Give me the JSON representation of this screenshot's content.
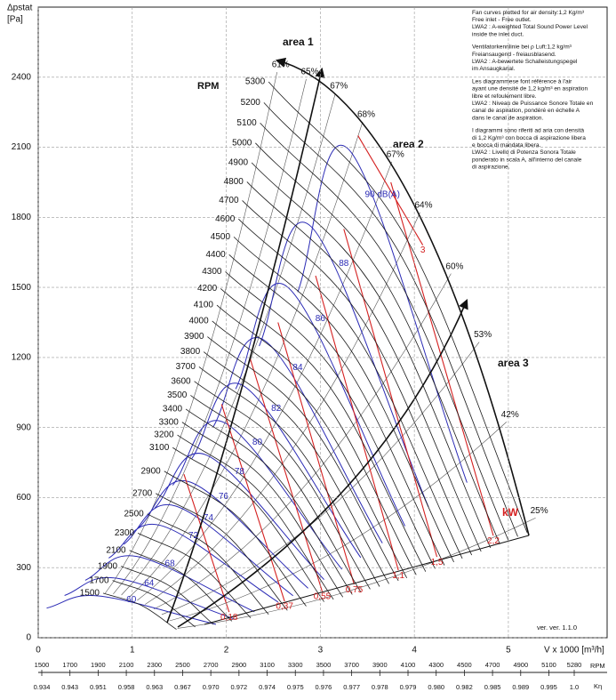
{
  "chart_data": {
    "type": "fan-curves",
    "y_label": "Δpstat",
    "y_unit": "[Pa]",
    "x_label": "V x 1000 [m³/h]",
    "version": "ver. ver. 1.1.0",
    "xlim": [
      0,
      6.05
    ],
    "ylim": [
      0,
      2700
    ],
    "xticks": [
      0,
      1,
      2,
      3,
      4,
      5
    ],
    "yticks": [
      0,
      300,
      600,
      900,
      1200,
      1500,
      1800,
      2100,
      2400
    ],
    "grid": true,
    "rpm_title": "RPM",
    "area_labels": [
      "area 1",
      "area 2",
      "area 3"
    ],
    "rpm_curves": {
      "color": "#1a1a1a",
      "labels": [
        "1500",
        "1700",
        "1900",
        "2100",
        "2300",
        "2500",
        "2700",
        "2900",
        "3100",
        "3200",
        "3300",
        "3400",
        "3500",
        "3600",
        "3700",
        "3800",
        "3900",
        "4000",
        "4100",
        "4200",
        "4300",
        "4400",
        "4500",
        "4600",
        "4700",
        "4800",
        "4900",
        "5000",
        "5100",
        "5200",
        "5300"
      ],
      "x": [
        [
          0.69,
          1.1,
          1.47
        ],
        [
          0.79,
          1.25,
          1.67
        ],
        [
          0.88,
          1.4,
          1.86
        ],
        [
          0.97,
          1.55,
          2.06
        ],
        [
          1.06,
          1.69,
          2.26
        ],
        [
          1.16,
          1.84,
          2.45
        ],
        [
          1.25,
          1.99,
          2.65
        ],
        [
          1.34,
          2.13,
          2.85
        ],
        [
          1.43,
          2.28,
          3.04
        ],
        [
          1.48,
          2.35,
          3.14
        ],
        [
          1.53,
          2.43,
          3.24
        ],
        [
          1.57,
          2.5,
          3.34
        ],
        [
          1.62,
          2.58,
          3.43
        ],
        [
          1.66,
          2.65,
          3.53
        ],
        [
          1.71,
          2.72,
          3.63
        ],
        [
          1.76,
          2.8,
          3.73
        ],
        [
          1.8,
          2.87,
          3.83
        ],
        [
          1.85,
          2.94,
          3.92
        ],
        [
          1.9,
          3.02,
          4.02
        ],
        [
          1.94,
          3.09,
          4.12
        ],
        [
          1.99,
          3.16,
          4.22
        ],
        [
          2.03,
          3.24,
          4.32
        ],
        [
          2.08,
          3.31,
          4.42
        ],
        [
          2.13,
          3.38,
          4.51
        ],
        [
          2.17,
          3.46,
          4.61
        ],
        [
          2.22,
          3.53,
          4.71
        ],
        [
          2.27,
          3.61,
          4.81
        ],
        [
          2.31,
          3.68,
          4.91
        ],
        [
          2.36,
          3.75,
          5.0
        ],
        [
          2.4,
          3.83,
          5.1
        ],
        [
          2.45,
          3.9,
          5.2
        ]
      ],
      "y": [
        [
          191,
          138,
          36
        ],
        [
          245,
          177,
          46
        ],
        [
          306,
          221,
          58
        ],
        [
          374,
          270,
          71
        ],
        [
          448,
          324,
          85
        ],
        [
          530,
          383,
          100
        ],
        [
          618,
          446,
          117
        ],
        [
          713,
          515,
          135
        ],
        [
          814,
          588,
          154
        ],
        [
          868,
          627,
          164
        ],
        [
          923,
          667,
          174
        ],
        [
          979,
          708,
          185
        ],
        [
          1038,
          750,
          196
        ],
        [
          1098,
          794,
          208
        ],
        [
          1160,
          838,
          219
        ],
        [
          1224,
          884,
          231
        ],
        [
          1289,
          931,
          244
        ],
        [
          1356,
          980,
          256
        ],
        [
          1424,
          1029,
          269
        ],
        [
          1495,
          1080,
          283
        ],
        [
          1567,
          1132,
          296
        ],
        [
          1640,
          1185,
          310
        ],
        [
          1716,
          1240,
          324
        ],
        [
          1793,
          1296,
          339
        ],
        [
          1872,
          1353,
          354
        ],
        [
          1952,
          1411,
          369
        ],
        [
          2034,
          1470,
          385
        ],
        [
          2118,
          1531,
          401
        ],
        [
          2204,
          1593,
          417
        ],
        [
          2291,
          1656,
          433
        ],
        [
          2380,
          1720,
          450
        ]
      ]
    },
    "efficiency": {
      "color": "#555555",
      "values": [
        61,
        65,
        67,
        68,
        67,
        64,
        60,
        53,
        42,
        25
      ],
      "value_labels": [
        "61%",
        "65%",
        "67%",
        "68%",
        "67%",
        "64%",
        "60%",
        "53%",
        "42%",
        "25%"
      ],
      "x": [
        2.54,
        2.85,
        3.16,
        3.45,
        3.76,
        4.06,
        4.39,
        4.69,
        4.98,
        5.29
      ],
      "y": [
        2422,
        2392,
        2331,
        2209,
        2038,
        1821,
        1559,
        1266,
        924,
        513
      ]
    },
    "sound": {
      "color": "#2b2bb5",
      "values": [
        90,
        88,
        86,
        84,
        82,
        80,
        78,
        76,
        74,
        72,
        68,
        64,
        60
      ],
      "value_labels": [
        "90 dB(A)",
        "88",
        "86",
        "84",
        "82",
        "80",
        "78",
        "76",
        "74",
        "72",
        "68",
        "64",
        "60"
      ],
      "label_x": [
        3.66,
        3.25,
        3.0,
        2.76,
        2.53,
        2.33,
        2.14,
        1.97,
        1.81,
        1.65,
        1.4,
        1.18,
        0.99
      ],
      "label_y": [
        1897,
        1601,
        1365,
        1156,
        981,
        837,
        711,
        605,
        513,
        437,
        316,
        232,
        163
      ],
      "x": [
        [
          2.76,
          3.31,
          4.56
        ],
        [
          2.35,
          2.9,
          4.15
        ],
        [
          2.1,
          2.65,
          3.9
        ],
        [
          1.86,
          2.41,
          3.66
        ],
        [
          1.63,
          2.18,
          3.43
        ],
        [
          1.43,
          1.98,
          3.23
        ],
        [
          1.24,
          1.79,
          3.04
        ],
        [
          1.07,
          1.62,
          2.87
        ],
        [
          0.91,
          1.46,
          2.71
        ],
        [
          0.75,
          1.3,
          2.55
        ],
        [
          0.5,
          1.05,
          2.3
        ],
        [
          0.28,
          0.83,
          2.08
        ],
        [
          0.09,
          0.64,
          1.89
        ]
      ],
      "y": [
        [
          1480,
          2087,
          664
        ],
        [
          1249,
          1761,
          560
        ],
        [
          1065,
          1502,
          478
        ],
        [
          902,
          1272,
          405
        ],
        [
          765,
          1079,
          343
        ],
        [
          653,
          921,
          293
        ],
        [
          555,
          782,
          249
        ],
        [
          472,
          666,
          212
        ],
        [
          400,
          564,
          180
        ],
        [
          341,
          481,
          153
        ],
        [
          246,
          348,
          111
        ],
        [
          181,
          255,
          81
        ],
        [
          127,
          179,
          57
        ]
      ]
    },
    "power": {
      "color": "#d42020",
      "unit": "kW",
      "values": [
        0.18,
        0.37,
        0.55,
        0.75,
        1.1,
        1.5,
        2.2,
        3
      ],
      "value_labels": [
        "0,18",
        "0,37",
        "0,55",
        "0,75",
        "1,1",
        "1,5",
        "2,2",
        "3"
      ],
      "x": [
        [
          2.03,
          1.55
        ],
        [
          2.62,
          1.95
        ],
        [
          3.02,
          2.25
        ],
        [
          3.36,
          2.55
        ],
        [
          3.83,
          2.95
        ],
        [
          4.24,
          3.25
        ],
        [
          4.84,
          3.75
        ],
        [
          4.09,
          3.4
        ]
      ],
      "y": [
        [
          110,
          700
        ],
        [
          156,
          1000
        ],
        [
          198,
          1200
        ],
        [
          228,
          1350
        ],
        [
          289,
          1550
        ],
        [
          346,
          1750
        ],
        [
          437,
          1950
        ],
        [
          1681,
          2150
        ]
      ]
    },
    "notes": [
      [
        "Fan curves plotted for air density:1,2 Kg/m³",
        "Free inlet - Free outlet.",
        "LWA2 : A-weighted Total Sound Power Level",
        "inside the inlet duct."
      ],
      [
        "Ventilatorkennlinie bei ρ Luft:1,2 kg/m³",
        "Freiansaugend - freiausblasend.",
        "LWA2 : A-bewertete Schalleistungspegel",
        "im Ansaugkanal."
      ],
      [
        "Les diagrammese font référence à l'air",
        "ayant une densité de 1,2 kg/m³ en aspiration",
        "libre et refoulement libre.",
        "LWA2 : Niveau de Puissance Sonore Totale en",
        "canal de aspiration, pondéré en échelle A",
        "dans le canal de aspiration."
      ],
      [
        "I diagrammi sono riferiti ad aria con densità",
        "di 1,2 Kg/m³ con bocca di aspirazione libera",
        "e bocca di mandata libera.",
        "LWA2 : Livello di Potenza Sonora Totale",
        "ponderato in scala A, all'interno del canale",
        "di aspirazione."
      ]
    ],
    "rpm_scale": {
      "label": "RPM",
      "lim": [
        1500,
        5280
      ],
      "ticks": [
        1500,
        1700,
        1900,
        2100,
        2300,
        2500,
        2700,
        2900,
        3100,
        3300,
        3500,
        3700,
        3900,
        4100,
        4300,
        4500,
        4700,
        4900,
        5100,
        5280
      ]
    },
    "k_eta": {
      "label": "Kη",
      "values": [
        "0.934",
        "0.943",
        "0.951",
        "0.958",
        "0.963",
        "0.967",
        "0.970",
        "0.972",
        "0.974",
        "0.975",
        "0.976",
        "0.977",
        "0.978",
        "0.979",
        "0.980",
        "0.982",
        "0.985",
        "0.989",
        "0.995",
        "1.0"
      ]
    }
  }
}
